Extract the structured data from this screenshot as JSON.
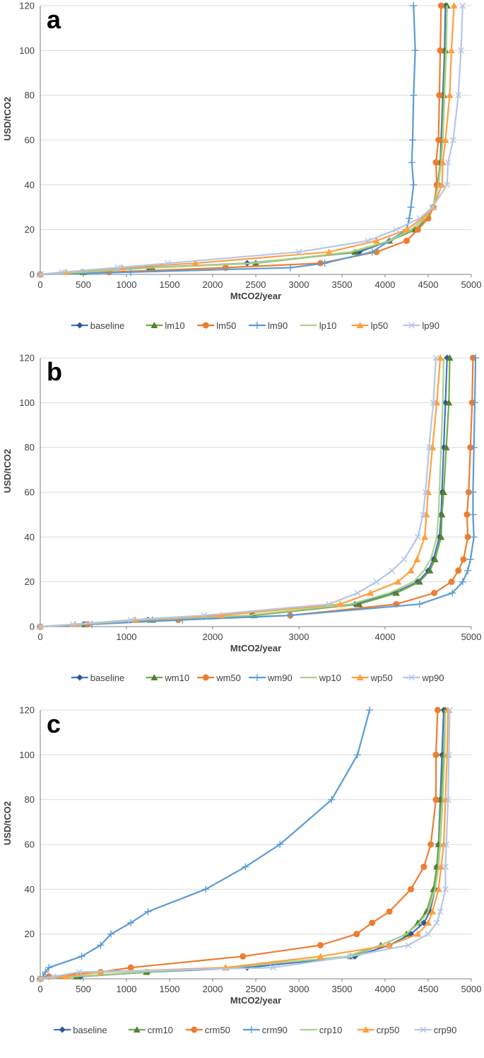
{
  "colors": {
    "baseline": "#4472C4",
    "m10": "#70AD47",
    "m50": "#ED7D31",
    "m90": "#5B9BD5",
    "p10": "#A9D18E",
    "p50": "#FF9F40",
    "p90": "#B4C7E7",
    "baseline_dark": "#2F5597",
    "m10_dark": "#548235",
    "m50_dark": "#C55A11",
    "grid": "#D9D9D9",
    "axis": "#7F7F7F"
  },
  "chart_data": [
    {
      "type": "line",
      "panel_label": "a",
      "xlabel": "MtCO2/year",
      "ylabel": "USD/tCO2",
      "xlim": [
        0,
        5000
      ],
      "ylim": [
        0,
        120
      ],
      "x_ticks": [
        0,
        500,
        1000,
        1500,
        2000,
        2500,
        3000,
        3500,
        4000,
        4500,
        5000
      ],
      "y_ticks": [
        0,
        20,
        40,
        60,
        80,
        100,
        120
      ],
      "y_values": [
        0,
        1,
        3,
        5,
        10,
        15,
        20,
        25,
        30,
        40,
        50,
        60,
        80,
        100,
        120
      ],
      "series": [
        {
          "name": "baseline",
          "style": "baseline",
          "x": [
            0,
            480,
            1250,
            2400,
            3700,
            4050,
            4350,
            4500,
            4560,
            4620,
            4640,
            4650,
            4670,
            4690,
            4700
          ]
        },
        {
          "name": "lm10",
          "style": "m10",
          "x": [
            0,
            500,
            1300,
            2500,
            3650,
            4050,
            4350,
            4480,
            4560,
            4610,
            4640,
            4660,
            4680,
            4700,
            4720
          ]
        },
        {
          "name": "lm50",
          "style": "m50",
          "x": [
            0,
            800,
            2150,
            3250,
            3900,
            4250,
            4380,
            4500,
            4560,
            4600,
            4590,
            4620,
            4630,
            4640,
            4650
          ]
        },
        {
          "name": "lm90",
          "style": "m90",
          "x": [
            0,
            1050,
            2900,
            3300,
            3850,
            4050,
            4250,
            4280,
            4300,
            4330,
            4310,
            4320,
            4330,
            4350,
            4330
          ]
        },
        {
          "name": "lp10",
          "style": "p10",
          "x": [
            0,
            500,
            1300,
            2450,
            3600,
            4050,
            4300,
            4460,
            4560,
            4620,
            4650,
            4670,
            4690,
            4710,
            4720
          ]
        },
        {
          "name": "lp50",
          "style": "p50",
          "x": [
            0,
            300,
            950,
            1800,
            3350,
            3900,
            4250,
            4430,
            4560,
            4660,
            4670,
            4700,
            4750,
            4770,
            4800
          ]
        },
        {
          "name": "lp90",
          "style": "p90",
          "x": [
            0,
            250,
            900,
            1480,
            3000,
            3800,
            4130,
            4400,
            4550,
            4720,
            4730,
            4790,
            4850,
            4880,
            4900
          ]
        }
      ]
    },
    {
      "type": "line",
      "panel_label": "b",
      "xlabel": "MtCO2/year",
      "ylabel": "USD/tCO2",
      "xlim": [
        0,
        5000
      ],
      "ylim": [
        0,
        120
      ],
      "x_ticks": [
        0,
        1000,
        2000,
        3000,
        4000,
        5000
      ],
      "y_ticks": [
        0,
        20,
        40,
        60,
        80,
        100,
        120
      ],
      "y_values": [
        0,
        1,
        3,
        5,
        10,
        15,
        20,
        25,
        30,
        40,
        50,
        60,
        80,
        100,
        120
      ],
      "series": [
        {
          "name": "baseline",
          "style": "baseline",
          "x": [
            0,
            500,
            1250,
            2450,
            3650,
            4100,
            4380,
            4500,
            4560,
            4630,
            4650,
            4660,
            4680,
            4700,
            4720
          ]
        },
        {
          "name": "wm10",
          "style": "m10",
          "x": [
            0,
            520,
            1300,
            2480,
            3700,
            4130,
            4400,
            4520,
            4580,
            4650,
            4660,
            4680,
            4710,
            4740,
            4750
          ]
        },
        {
          "name": "wm50",
          "style": "m50",
          "x": [
            0,
            550,
            1600,
            2900,
            4130,
            4570,
            4770,
            4850,
            4910,
            4960,
            4950,
            4970,
            4990,
            5010,
            5020
          ]
        },
        {
          "name": "wm90",
          "style": "m90",
          "x": [
            0,
            600,
            1650,
            2900,
            4400,
            4780,
            4900,
            4960,
            4990,
            5030,
            5020,
            5020,
            5030,
            5040,
            5050
          ]
        },
        {
          "name": "wp10",
          "style": "p10",
          "x": [
            0,
            480,
            1200,
            2400,
            3600,
            4050,
            4330,
            4450,
            4530,
            4600,
            4620,
            4630,
            4650,
            4670,
            4680
          ]
        },
        {
          "name": "wp50",
          "style": "p50",
          "x": [
            0,
            400,
            1100,
            2100,
            3480,
            3830,
            4150,
            4300,
            4370,
            4460,
            4480,
            4500,
            4550,
            4600,
            4640
          ]
        },
        {
          "name": "wp90",
          "style": "p90",
          "x": [
            0,
            380,
            1050,
            1900,
            3350,
            3680,
            3900,
            4080,
            4220,
            4380,
            4440,
            4470,
            4510,
            4560,
            4590
          ]
        }
      ]
    },
    {
      "type": "line",
      "panel_label": "c",
      "xlabel": "MtCO2/year",
      "ylabel": "USD/tCO2",
      "xlim": [
        0,
        5000
      ],
      "ylim": [
        0,
        120
      ],
      "x_ticks": [
        0,
        500,
        1000,
        1500,
        2000,
        2500,
        3000,
        3500,
        4000,
        4500,
        5000
      ],
      "y_ticks": [
        0,
        20,
        40,
        60,
        80,
        100,
        120
      ],
      "y_values": [
        0,
        1,
        3,
        5,
        10,
        15,
        20,
        25,
        30,
        40,
        50,
        60,
        80,
        100,
        120
      ],
      "series": [
        {
          "name": "baseline",
          "style": "baseline",
          "x": [
            0,
            470,
            1250,
            2400,
            3650,
            4050,
            4300,
            4450,
            4520,
            4580,
            4600,
            4620,
            4640,
            4660,
            4680
          ]
        },
        {
          "name": "crm10",
          "style": "m10",
          "x": [
            0,
            420,
            1230,
            2150,
            3600,
            3950,
            4250,
            4380,
            4480,
            4560,
            4600,
            4620,
            4650,
            4680,
            4700
          ]
        },
        {
          "name": "crm50",
          "style": "m50",
          "x": [
            0,
            100,
            700,
            1050,
            2350,
            3250,
            3670,
            3850,
            4050,
            4300,
            4450,
            4530,
            4590,
            4590,
            4610
          ]
        },
        {
          "name": "crm90",
          "style": "m90",
          "x": [
            0,
            30,
            60,
            100,
            480,
            700,
            820,
            1050,
            1250,
            1920,
            2380,
            2780,
            3380,
            3680,
            3820
          ]
        },
        {
          "name": "crp10",
          "style": "p10",
          "x": [
            0,
            400,
            1150,
            2200,
            3550,
            3950,
            4250,
            4400,
            4500,
            4580,
            4620,
            4640,
            4670,
            4690,
            4700
          ]
        },
        {
          "name": "crp50",
          "style": "p50",
          "x": [
            0,
            300,
            700,
            2150,
            3250,
            4050,
            4380,
            4500,
            4550,
            4620,
            4650,
            4680,
            4700,
            4720,
            4730
          ]
        },
        {
          "name": "crp90",
          "style": "p90",
          "x": [
            0,
            150,
            450,
            2700,
            3600,
            4270,
            4500,
            4600,
            4640,
            4700,
            4700,
            4710,
            4730,
            4740,
            4750
          ]
        }
      ]
    }
  ]
}
